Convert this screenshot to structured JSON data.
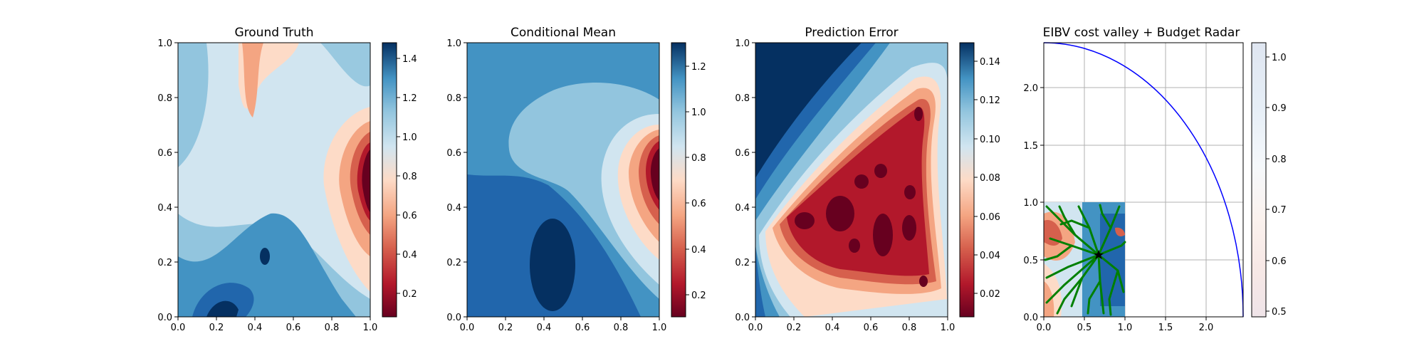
{
  "chart_data": [
    {
      "type": "heatmap",
      "title": "Ground Truth",
      "xlim": [
        0.0,
        1.0
      ],
      "ylim": [
        0.0,
        1.0
      ],
      "x_ticks": [
        "0.0",
        "0.2",
        "0.4",
        "0.6",
        "0.8",
        "1.0"
      ],
      "y_ticks": [
        "0.0",
        "0.2",
        "0.4",
        "0.6",
        "0.8",
        "1.0"
      ],
      "colormap": "RdBu filled contours",
      "colorbar": {
        "min": 0.1,
        "max": 1.5,
        "ticks": [
          "0.2",
          "0.4",
          "0.6",
          "0.8",
          "1.0",
          "1.2",
          "1.4"
        ]
      },
      "features": [
        {
          "kind": "low",
          "x": 0.93,
          "y": 0.52,
          "value": 0.15
        },
        {
          "kind": "high",
          "x": 0.25,
          "y": 0.08,
          "value": 1.45
        },
        {
          "kind": "high",
          "x": 0.46,
          "y": 0.24,
          "value": 1.45
        },
        {
          "kind": "mid",
          "x": 0.35,
          "y": 0.88,
          "value": 0.65
        }
      ]
    },
    {
      "type": "heatmap",
      "title": "Conditional Mean",
      "xlim": [
        0.0,
        1.0
      ],
      "ylim": [
        0.0,
        1.0
      ],
      "x_ticks": [
        "0.0",
        "0.2",
        "0.4",
        "0.6",
        "0.8",
        "1.0"
      ],
      "y_ticks": [
        "0.0",
        "0.2",
        "0.4",
        "0.6",
        "0.8",
        "1.0"
      ],
      "colormap": "RdBu filled contours",
      "colorbar": {
        "min": 0.1,
        "max": 1.35,
        "ticks": [
          "0.2",
          "0.4",
          "0.6",
          "0.8",
          "1.0",
          "1.2"
        ]
      },
      "features": [
        {
          "kind": "low",
          "x": 0.95,
          "y": 0.53,
          "value": 0.15
        },
        {
          "kind": "high",
          "x": 0.45,
          "y": 0.2,
          "value": 1.3
        }
      ]
    },
    {
      "type": "heatmap",
      "title": "Prediction Error",
      "xlim": [
        0.0,
        1.0
      ],
      "ylim": [
        0.0,
        1.0
      ],
      "x_ticks": [
        "0.0",
        "0.2",
        "0.4",
        "0.6",
        "0.8",
        "1.0"
      ],
      "y_ticks": [
        "0.0",
        "0.2",
        "0.4",
        "0.6",
        "0.8",
        "1.0"
      ],
      "colormap": "RdBu filled contours",
      "colorbar": {
        "min": 0.005,
        "max": 0.15,
        "ticks": [
          "0.02",
          "0.04",
          "0.06",
          "0.08",
          "0.10",
          "0.12",
          "0.14"
        ]
      },
      "features": [
        {
          "kind": "low",
          "x": 0.55,
          "y": 0.4,
          "value": 0.01
        },
        {
          "kind": "high",
          "x": 0.1,
          "y": 0.95,
          "value": 0.15
        }
      ]
    },
    {
      "type": "heatmap",
      "title": "EIBV cost valley + Budget Radar",
      "xlim": [
        0.0,
        2.4
      ],
      "ylim": [
        0.0,
        2.4
      ],
      "x_ticks": [
        "0.0",
        "0.5",
        "1.0",
        "1.5",
        "2.0"
      ],
      "y_ticks": [
        "0.0",
        "0.5",
        "1.0",
        "1.5",
        "2.0"
      ],
      "grid": true,
      "colormap": "RdBu",
      "colorbar": {
        "min": 0.48,
        "max": 1.03,
        "ticks": [
          "0.5",
          "0.6",
          "0.7",
          "0.8",
          "0.9",
          "1.0"
        ]
      },
      "cost_field_extent": [
        0.0,
        1.0,
        0.0,
        1.0
      ],
      "budget_radar_radius": 2.38,
      "current_location": {
        "x": 0.68,
        "y": 0.53
      },
      "colors": {
        "radar": "#0000ff",
        "paths": "#008000",
        "marker": "#000000"
      }
    }
  ]
}
